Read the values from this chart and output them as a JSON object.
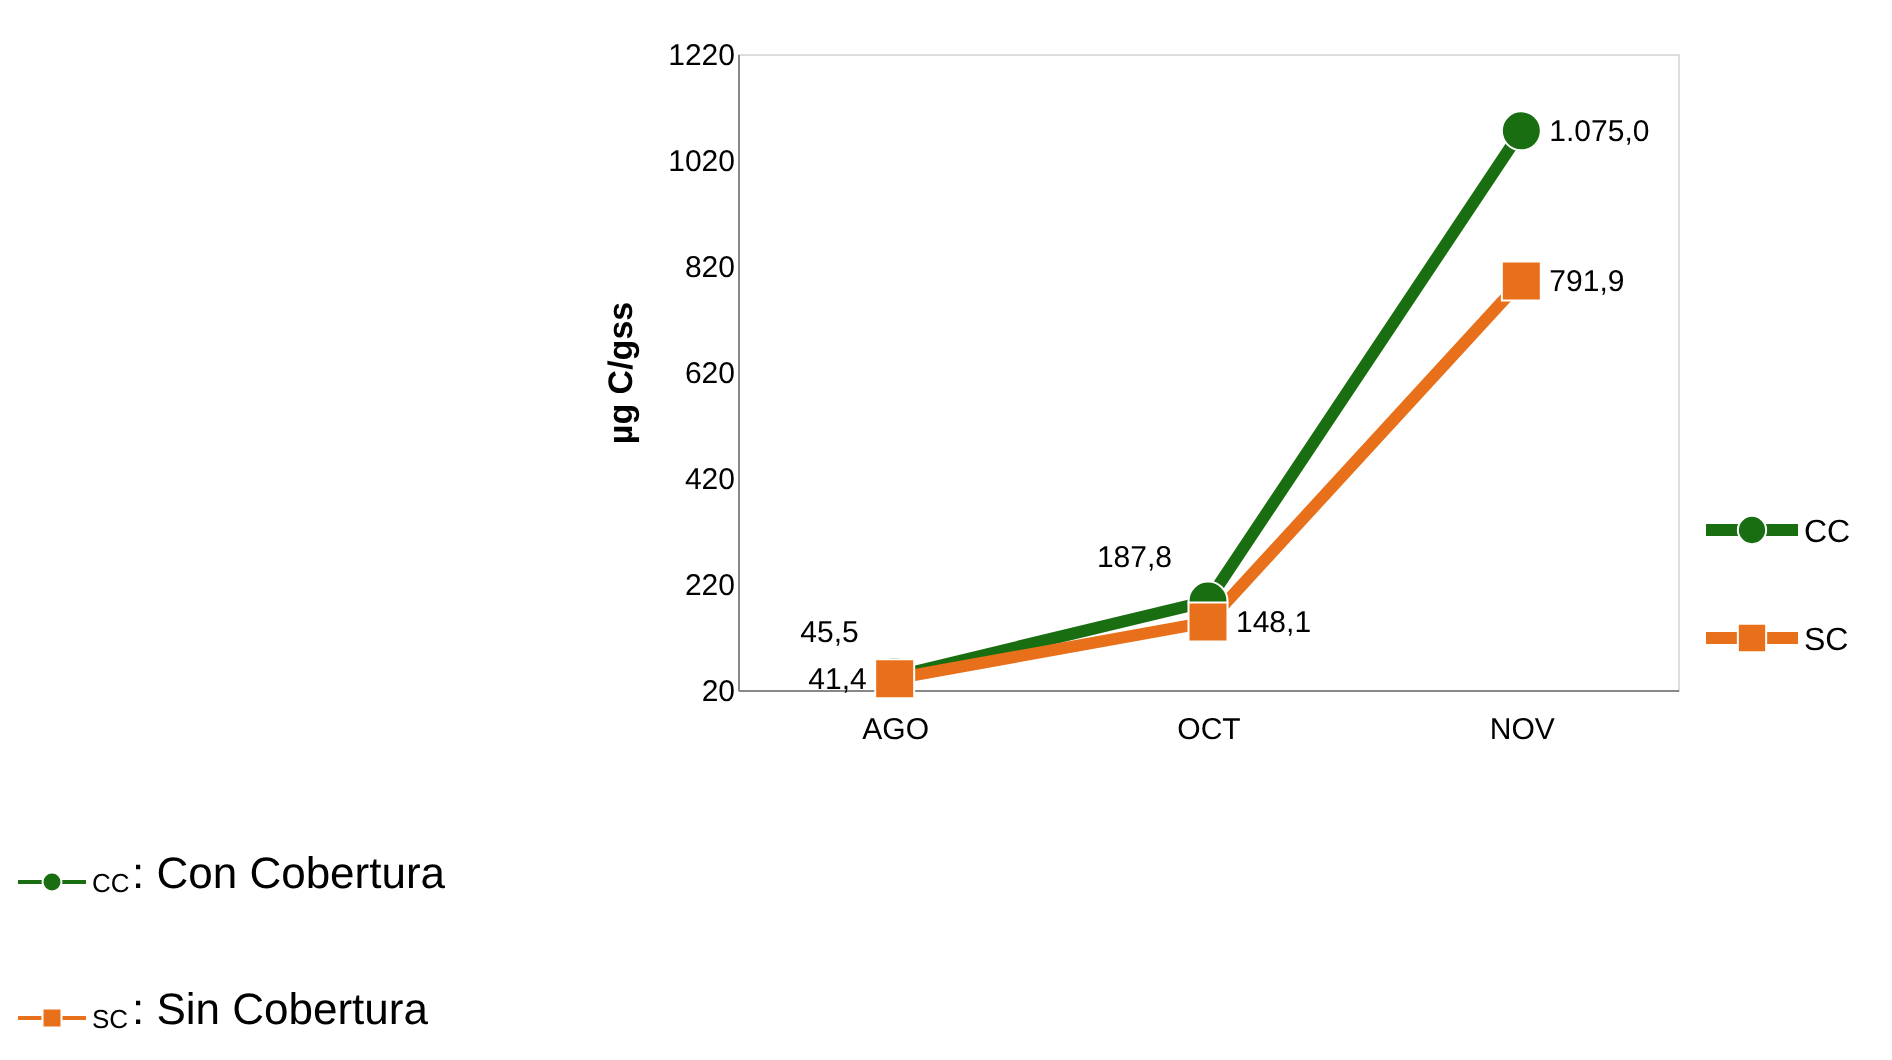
{
  "chart_data": {
    "type": "line",
    "categories": [
      "AGO",
      "OCT",
      "NOV"
    ],
    "series": [
      {
        "name": "CC",
        "color": "#1a6e12",
        "marker": "circle",
        "values": [
          45.5,
          187.8,
          1075.0
        ],
        "value_labels": [
          "45,5",
          "187,8",
          "1.075,0"
        ]
      },
      {
        "name": "SC",
        "color": "#e8701a",
        "marker": "square",
        "values": [
          41.4,
          148.1,
          791.9
        ],
        "value_labels": [
          "41,4",
          "148,1",
          "791,9"
        ]
      }
    ],
    "ylabel": "µg  C/gss",
    "ylim": [
      20,
      1220
    ],
    "yticks": [
      20,
      220,
      420,
      620,
      820,
      1020,
      1220
    ],
    "grid": false,
    "legend": "right",
    "line_style": "solid",
    "annotations": [
      ": Con Cobertura",
      ": Sin Cobertura"
    ]
  }
}
